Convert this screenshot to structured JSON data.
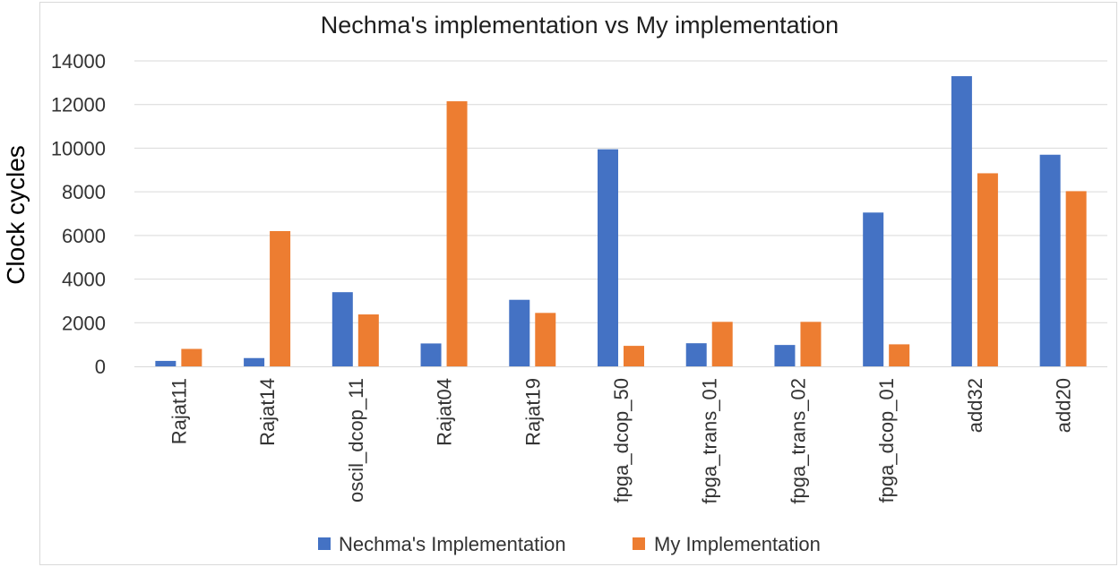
{
  "chart_data": {
    "type": "bar",
    "title": "Nechma's implementation vs My implementation",
    "xlabel": "",
    "ylabel": "Clock cycles",
    "ylim": [
      0,
      14000
    ],
    "yticks": [
      0,
      2000,
      4000,
      6000,
      8000,
      10000,
      12000,
      14000
    ],
    "grid": true,
    "legend_position": "bottom",
    "categories": [
      "Rajat11",
      "Rajat14",
      "oscil_dcop_11",
      "Rajat04",
      "Rajat19",
      "fpga_dcop_50",
      "fpga_trans_01",
      "fpga_trans_02",
      "fpga_dcop_01",
      "add32",
      "add20"
    ],
    "series": [
      {
        "name": "Nechma's Implementation",
        "color": "#4472c4",
        "values": [
          250,
          380,
          3400,
          1050,
          3050,
          9950,
          1060,
          980,
          7050,
          13300,
          9700
        ]
      },
      {
        "name": "My Implementation",
        "color": "#ed7d31",
        "values": [
          800,
          6200,
          2380,
          12150,
          2450,
          940,
          2040,
          2040,
          1010,
          8850,
          8030
        ]
      }
    ]
  }
}
